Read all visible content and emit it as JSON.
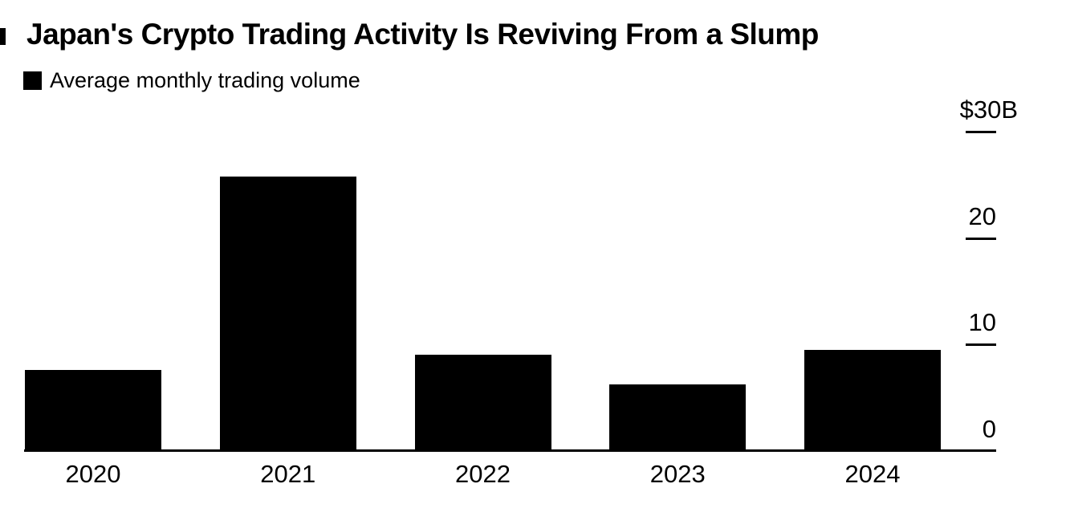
{
  "page": {
    "title": "Japan's Crypto Trading Activity Is Reviving From a Slump"
  },
  "legend": {
    "label": "Average monthly trading volume",
    "swatch_color": "#000000"
  },
  "chart_data": {
    "type": "bar",
    "title": "Japan's Crypto Trading Activity Is Reviving From a Slump",
    "legend_entries": [
      "Average monthly trading volume"
    ],
    "legend_position": "top-left",
    "categories": [
      "2020",
      "2021",
      "2022",
      "2023",
      "2024"
    ],
    "values": [
      7.5,
      25.7,
      9.0,
      6.2,
      9.4
    ],
    "xlabel": "",
    "ylabel": "",
    "ylim": [
      0,
      30
    ],
    "value_axis_side": "right",
    "grid": false,
    "bar_color": "#000000",
    "background_color": "#ffffff",
    "yticks": [
      {
        "value": 30,
        "label": "$30B",
        "tick_line": true
      },
      {
        "value": 20,
        "label": "20",
        "tick_line": true
      },
      {
        "value": 10,
        "label": "10",
        "tick_line": true
      },
      {
        "value": 0,
        "label": "0",
        "tick_line": false
      }
    ]
  }
}
